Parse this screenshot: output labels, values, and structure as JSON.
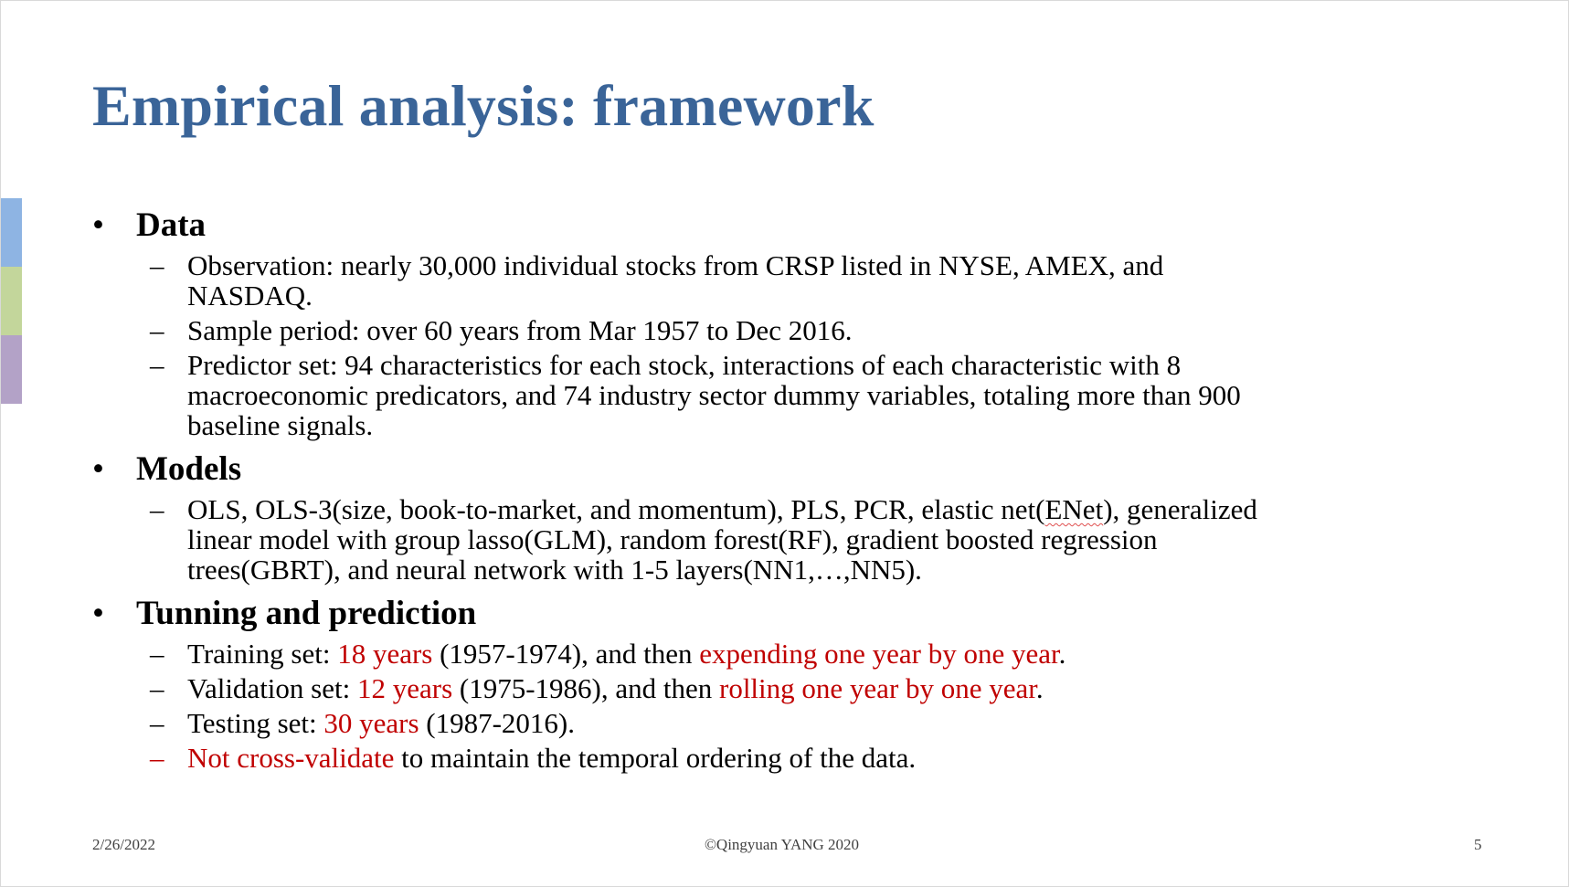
{
  "slide": {
    "title": "Empirical analysis: framework",
    "colors": {
      "title": "#3a6498",
      "highlight": "#c00000",
      "accent_blue": "#8eb4e3",
      "accent_green": "#c3d69b",
      "accent_purple": "#b3a2c7"
    },
    "sections": {
      "data": {
        "heading": "Data",
        "obs_line1": "Observation: nearly 30,000 individual stocks from CRSP listed in NYSE, AMEX, and",
        "obs_line2": "NASDAQ.",
        "sample": "Sample period: over 60 years from Mar 1957 to Dec 2016.",
        "pred_line1": "Predictor set: 94 characteristics for each stock, interactions of each characteristic with 8",
        "pred_line2": "macroeconomic predicators, and 74 industry sector dummy variables, totaling more than 900",
        "pred_line3": "baseline signals."
      },
      "models": {
        "heading": "Models",
        "line1_pre": "OLS, OLS-3(size, book-to-market, and momentum), PLS, PCR, elastic net(",
        "line1_enet": "ENet",
        "line1_post": "), generalized",
        "line2": "linear model with group lasso(GLM), random forest(RF), gradient boosted regression",
        "line3": "trees(GBRT), and neural network with 1-5 layers(NN1,…,NN5)."
      },
      "tuning": {
        "heading": "Tunning and prediction",
        "training": {
          "prefix": "Training set: ",
          "red1": "18 years",
          "mid": " (1957-1974), and then ",
          "red2": "expending one year by one year",
          "suffix": "."
        },
        "validation": {
          "prefix": "Validation set: ",
          "red1": "12 years",
          "mid": " (1975-1986), and then ",
          "red2": "rolling one year by one year",
          "suffix": "."
        },
        "testing": {
          "prefix": "Testing set: ",
          "red1": "30 years",
          "suffix": " (1987-2016)."
        },
        "crossval": {
          "red": "Not cross-validate",
          "rest": " to maintain the temporal ordering of the data."
        }
      }
    },
    "footer": {
      "date": "2/26/2022",
      "copyright": "©Qingyuan YANG 2020",
      "page": "5"
    },
    "bullet_symbol": "•",
    "dash_symbol": "–"
  }
}
